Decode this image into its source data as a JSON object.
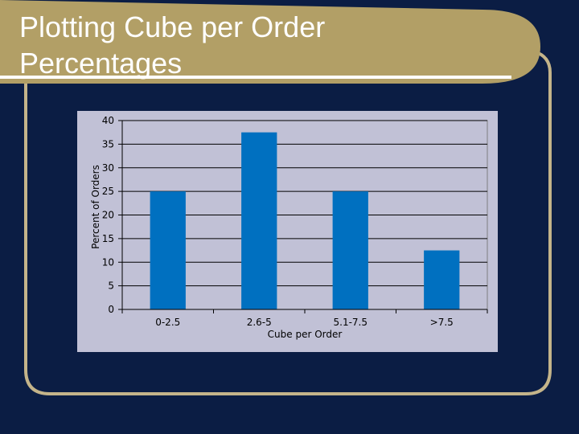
{
  "slide": {
    "title_line_1": "Plotting Cube per Order",
    "title_line_2": "Percentages"
  },
  "colors": {
    "background": "#0b1d44",
    "accent_frame": "#c4b48a",
    "title_banner": "#b29f66",
    "chart_panel": "#c1c1d6",
    "bar_fill": "#0070c0"
  },
  "chart_data": {
    "type": "bar",
    "categories": [
      "0-2.5",
      "2.6-5",
      "5.1-7.5",
      ">7.5"
    ],
    "values": [
      25,
      37.5,
      25,
      12.5
    ],
    "title": "",
    "xlabel": "Cube per Order",
    "ylabel": "Percent of Orders",
    "ylim": [
      0,
      40
    ],
    "yticks": [
      0,
      5,
      10,
      15,
      20,
      25,
      30,
      35,
      40
    ],
    "grid": true,
    "legend": "none"
  }
}
